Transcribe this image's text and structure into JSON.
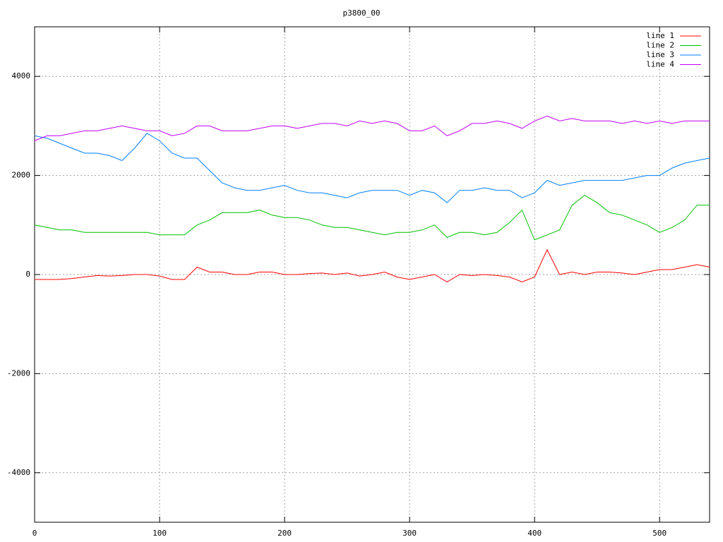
{
  "chart_data": {
    "type": "line",
    "title": "p3800_00",
    "x": [
      0,
      10,
      20,
      30,
      40,
      50,
      60,
      70,
      80,
      90,
      100,
      110,
      120,
      130,
      140,
      150,
      160,
      170,
      180,
      190,
      200,
      210,
      220,
      230,
      240,
      250,
      260,
      270,
      280,
      290,
      300,
      310,
      320,
      330,
      340,
      350,
      360,
      370,
      380,
      390,
      400,
      410,
      420,
      430,
      440,
      450,
      460,
      470,
      480,
      490,
      500,
      510,
      520,
      530,
      540
    ],
    "series": [
      {
        "name": "line 1",
        "color": "#ff0000",
        "values": [
          -100,
          -100,
          -100,
          -80,
          -50,
          -20,
          -30,
          -20,
          0,
          0,
          -30,
          -100,
          -100,
          150,
          50,
          50,
          0,
          0,
          50,
          50,
          0,
          0,
          20,
          30,
          0,
          30,
          -30,
          0,
          50,
          -50,
          -100,
          -50,
          0,
          -150,
          0,
          -20,
          0,
          -20,
          -50,
          -150,
          -50,
          500,
          0,
          50,
          0,
          50,
          50,
          30,
          0,
          50,
          100,
          100,
          150,
          200,
          150
        ]
      },
      {
        "name": "line 2",
        "color": "#00c000",
        "values": [
          1000,
          950,
          900,
          900,
          850,
          850,
          850,
          850,
          850,
          850,
          800,
          800,
          800,
          1000,
          1100,
          1250,
          1250,
          1250,
          1300,
          1200,
          1150,
          1150,
          1100,
          1000,
          950,
          950,
          900,
          850,
          800,
          850,
          850,
          900,
          1000,
          750,
          850,
          850,
          800,
          850,
          1050,
          1300,
          700,
          800,
          900,
          1400,
          1600,
          1450,
          1250,
          1200,
          1100,
          1000,
          850,
          950,
          1100,
          1400,
          1400
        ]
      },
      {
        "name": "line 3",
        "color": "#0080ff",
        "values": [
          2800,
          2750,
          2650,
          2550,
          2450,
          2450,
          2400,
          2300,
          2550,
          2850,
          2700,
          2450,
          2350,
          2350,
          2100,
          1850,
          1750,
          1700,
          1700,
          1750,
          1800,
          1700,
          1650,
          1650,
          1600,
          1550,
          1650,
          1700,
          1700,
          1700,
          1600,
          1700,
          1650,
          1450,
          1700,
          1700,
          1750,
          1700,
          1700,
          1550,
          1650,
          1900,
          1800,
          1850,
          1900,
          1900,
          1900,
          1900,
          1950,
          2000,
          2000,
          2150,
          2250,
          2300,
          2350
        ]
      },
      {
        "name": "line 4",
        "color": "#c000ff",
        "values": [
          2700,
          2800,
          2800,
          2850,
          2900,
          2900,
          2950,
          3000,
          2950,
          2900,
          2900,
          2800,
          2850,
          3000,
          3000,
          2900,
          2900,
          2900,
          2950,
          3000,
          3000,
          2950,
          3000,
          3050,
          3050,
          3000,
          3100,
          3050,
          3100,
          3050,
          2900,
          2900,
          3000,
          2800,
          2900,
          3050,
          3050,
          3100,
          3050,
          2950,
          3100,
          3200,
          3100,
          3150,
          3100,
          3100,
          3100,
          3050,
          3100,
          3050,
          3100,
          3050,
          3100,
          3100,
          3100
        ]
      }
    ],
    "xlim": [
      0,
      540
    ],
    "xticks": [
      0,
      100,
      200,
      300,
      400,
      500
    ],
    "ylim": [
      -5000,
      5000
    ],
    "yticks": [
      -4000,
      -2000,
      0,
      2000,
      4000
    ],
    "grid": true,
    "legend": "top-right"
  }
}
